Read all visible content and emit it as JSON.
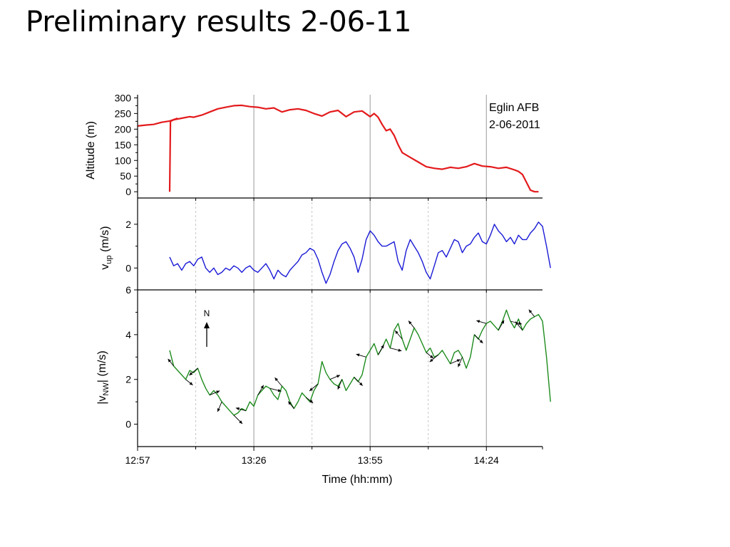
{
  "slide": {
    "title": "Preliminary results 2-06-11"
  },
  "chart_data": {
    "type": "line",
    "annotation": {
      "line1": "Eglin AFB",
      "line2": "2-06-2011"
    },
    "xlabel": "Time (hh:mm)",
    "x_ticks": [
      "12:57",
      "13:26",
      "13:55",
      "14:24"
    ],
    "x_range_min": [
      0,
      101
    ],
    "colors": {
      "altitude": "#e31a1c",
      "v_up": "#1a1ad6",
      "v_nw": "#1e8c1e",
      "arrow": "#000000",
      "gridline": "#999999"
    },
    "north_arrow_label": "N",
    "panels": [
      {
        "name": "altitude",
        "ylabel": "Altitude (m)",
        "ylim": [
          -20,
          310
        ],
        "yticks": [
          "0",
          "50",
          "100",
          "150",
          "200",
          "250",
          "300"
        ],
        "segments": [
          {
            "x": [
              0,
              2,
              4,
              6,
              8,
              10
            ],
            "y": [
              210,
              213,
              215,
              222,
              226,
              235
            ]
          },
          {
            "x": [
              8,
              8.2,
              9,
              11,
              13,
              14,
              16,
              18,
              20,
              22,
              24,
              26,
              28,
              30,
              32,
              34,
              36,
              38,
              40,
              42,
              44,
              46,
              48,
              50,
              52,
              54,
              56,
              58,
              59,
              60,
              61,
              62,
              63,
              64,
              65,
              66,
              68,
              70,
              72,
              74,
              76,
              78,
              80,
              82,
              84,
              86,
              88,
              90,
              92,
              94,
              95,
              96,
              97,
              98,
              99,
              100
            ],
            "y": [
              0,
              225,
              230,
              235,
              240,
              238,
              245,
              255,
              265,
              270,
              275,
              276,
              272,
              270,
              265,
              268,
              255,
              262,
              265,
              260,
              250,
              242,
              255,
              260,
              240,
              255,
              258,
              240,
              250,
              238,
              215,
              195,
              200,
              180,
              150,
              125,
              110,
              95,
              80,
              75,
              72,
              78,
              75,
              80,
              90,
              82,
              80,
              75,
              78,
              70,
              65,
              55,
              30,
              5,
              0,
              0
            ]
          }
        ]
      },
      {
        "name": "v_up",
        "ylabel": "v",
        "ylabel_sub": "up",
        "ylabel_suffix": " (m/s)",
        "ylim": [
          -1,
          3.2
        ],
        "yticks": [
          "0",
          "2"
        ],
        "x": [
          8,
          9,
          10,
          11,
          12,
          13,
          14,
          15,
          16,
          17,
          18,
          19,
          20,
          21,
          22,
          23,
          24,
          25,
          26,
          27,
          28,
          29,
          30,
          31,
          32,
          33,
          34,
          35,
          36,
          37,
          38,
          39,
          40,
          41,
          42,
          43,
          44,
          45,
          46,
          47,
          48,
          49,
          50,
          51,
          52,
          53,
          54,
          55,
          56,
          57,
          58,
          59,
          60,
          61,
          62,
          63,
          64,
          65,
          66,
          67,
          68,
          69,
          70,
          71,
          72,
          73,
          74,
          75,
          76,
          77,
          78,
          79,
          80,
          81,
          82,
          83,
          84,
          85,
          86,
          87,
          88,
          89,
          90,
          91,
          92,
          93,
          94,
          95,
          96,
          97,
          98,
          99,
          100,
          101,
          102,
          103
        ],
        "y": [
          0.5,
          0.1,
          0.2,
          -0.1,
          0.2,
          0.3,
          0.1,
          0.4,
          0.5,
          0.0,
          -0.2,
          0.0,
          -0.3,
          -0.2,
          0.0,
          -0.1,
          0.1,
          0.0,
          -0.2,
          0.0,
          0.1,
          -0.1,
          -0.2,
          0.0,
          0.2,
          -0.1,
          -0.5,
          -0.1,
          -0.3,
          -0.4,
          -0.1,
          0.1,
          0.3,
          0.6,
          0.7,
          0.9,
          0.8,
          0.4,
          -0.2,
          -0.7,
          -0.3,
          0.3,
          0.8,
          1.1,
          1.2,
          0.9,
          0.5,
          -0.2,
          0.4,
          1.3,
          1.7,
          1.5,
          1.2,
          1.0,
          1.0,
          1.1,
          1.2,
          0.3,
          -0.1,
          0.8,
          1.3,
          1.0,
          0.7,
          0.3,
          -0.2,
          -0.5,
          0.1,
          0.7,
          0.8,
          0.5,
          0.9,
          1.3,
          1.2,
          0.7,
          1.0,
          1.1,
          1.4,
          1.6,
          1.2,
          1.1,
          1.5,
          2.0,
          1.7,
          1.5,
          1.2,
          1.4,
          1.1,
          1.5,
          1.3,
          1.3,
          1.6,
          1.8,
          2.1,
          1.9,
          1.0,
          0.0
        ]
      },
      {
        "name": "v_nw",
        "ylabel": "|v",
        "ylabel_sub": "NW",
        "ylabel_suffix": "| (m/s)",
        "ylim": [
          -1,
          6
        ],
        "yticks": [
          "0",
          "2",
          "4",
          "6"
        ],
        "x": [
          8,
          9,
          10,
          11,
          12,
          13,
          14,
          15,
          16,
          17,
          18,
          19,
          20,
          21,
          22,
          23,
          24,
          25,
          26,
          27,
          28,
          29,
          30,
          31,
          32,
          33,
          34,
          35,
          36,
          37,
          38,
          39,
          40,
          41,
          42,
          43,
          44,
          45,
          46,
          47,
          48,
          49,
          50,
          51,
          52,
          53,
          54,
          55,
          56,
          57,
          58,
          59,
          60,
          61,
          62,
          63,
          64,
          65,
          66,
          67,
          68,
          69,
          70,
          71,
          72,
          73,
          74,
          75,
          76,
          77,
          78,
          79,
          80,
          81,
          82,
          83,
          84,
          85,
          86,
          87,
          88,
          89,
          90,
          91,
          92,
          93,
          94,
          95,
          96,
          97,
          98,
          99,
          100,
          101,
          102,
          103
        ],
        "y": [
          3.3,
          2.6,
          2.4,
          2.2,
          2.0,
          2.4,
          2.3,
          2.5,
          2.0,
          1.6,
          1.3,
          1.5,
          1.3,
          1.0,
          0.8,
          0.6,
          0.4,
          0.5,
          0.7,
          0.6,
          1.0,
          0.8,
          1.3,
          1.5,
          1.7,
          1.6,
          1.3,
          1.1,
          1.7,
          1.5,
          1.0,
          0.7,
          1.0,
          1.4,
          1.2,
          1.0,
          1.5,
          1.8,
          2.8,
          2.3,
          2.0,
          1.8,
          1.7,
          2.0,
          1.5,
          1.8,
          2.1,
          1.9,
          2.2,
          3.0,
          3.3,
          3.6,
          3.1,
          3.4,
          3.8,
          3.4,
          4.2,
          4.5,
          3.8,
          3.3,
          3.8,
          4.3,
          4.0,
          3.6,
          3.2,
          3.4,
          3.0,
          3.1,
          3.3,
          3.0,
          2.7,
          3.2,
          3.3,
          3.0,
          2.5,
          3.0,
          4.0,
          3.8,
          4.2,
          4.5,
          4.6,
          4.4,
          4.2,
          4.6,
          5.1,
          4.6,
          4.3,
          4.7,
          4.2,
          4.5,
          4.7,
          4.8,
          4.9,
          4.6,
          3.0,
          1.0
        ]
      }
    ]
  }
}
